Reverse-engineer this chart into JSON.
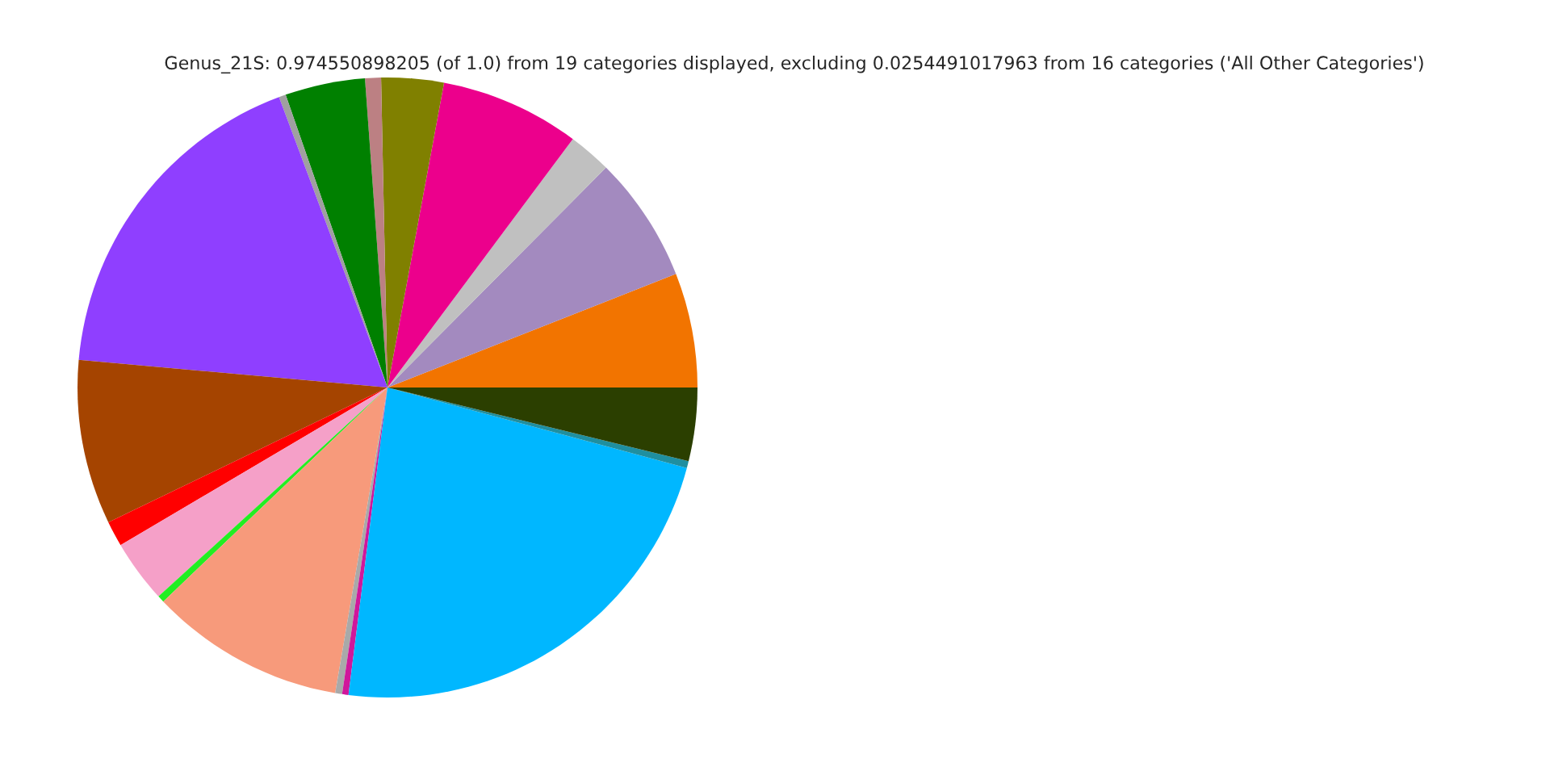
{
  "chart_data": {
    "type": "pie",
    "title": "Genus_21S: 0.974550898205 (of 1.0) from 19 categories displayed, excluding 0.0254491017963 from 16 categories ('All Other Categories')",
    "categories": [
      null,
      null,
      null,
      null,
      null,
      null,
      null,
      null,
      null,
      null,
      null,
      null,
      null,
      null,
      null,
      null,
      null,
      null,
      null
    ],
    "values": [
      5.97,
      6.58,
      2.25,
      7.28,
      3.25,
      0.83,
      4.17,
      0.36,
      17.89,
      8.58,
      1.33,
      3.28,
      0.36,
      10.17,
      0.36,
      0.33,
      22.83,
      0.36,
      3.82
    ],
    "colors": [
      "#f27400",
      "#a38abf",
      "#c0c0c0",
      "#ec008c",
      "#808000",
      "#bc8083",
      "#008000",
      "#a0a0a0",
      "#8f3fff",
      "#a54400",
      "#ff0000",
      "#f5a0c8",
      "#22ee22",
      "#f79a7b",
      "#a9a9a9",
      "#d0179b",
      "#00b7ff",
      "#1f8fa0",
      "#2b3f00"
    ]
  }
}
